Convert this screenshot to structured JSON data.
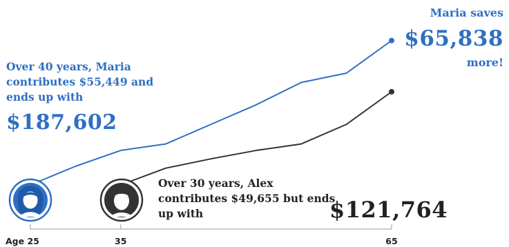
{
  "chart_data": {
    "type": "line",
    "title": "",
    "xlabel": "",
    "ylabel": "",
    "xlim": [
      25,
      65
    ],
    "x_ticks": [
      {
        "value": 25,
        "label": "Age 25"
      },
      {
        "value": 35,
        "label": "35"
      },
      {
        "value": 65,
        "label": "65"
      }
    ],
    "series": [
      {
        "name": "Maria",
        "color": "#2f6fc4",
        "x": [
          25,
          30,
          35,
          40,
          45,
          50,
          55,
          60,
          65
        ],
        "values": [
          0,
          20,
          37,
          44,
          65,
          86,
          110,
          120,
          155
        ]
      },
      {
        "name": "Alex",
        "color": "#333333",
        "x": [
          35,
          40,
          45,
          50,
          55,
          60,
          65
        ],
        "values": [
          0,
          18,
          28,
          37,
          44,
          65,
          100
        ]
      }
    ],
    "annotations": {
      "maria_note": "Over 40 years, Maria contributes $55,449 and ends up with",
      "maria_total": "$187,602",
      "alex_note": "Over 30 years, Alex contributes $49,655 but ends up with",
      "alex_total": "$121,764",
      "saves_label": "Maria saves",
      "saves_amount": "$65,838",
      "saves_more": "more!"
    },
    "icons": [
      "maria-avatar-icon",
      "alex-avatar-icon"
    ]
  }
}
